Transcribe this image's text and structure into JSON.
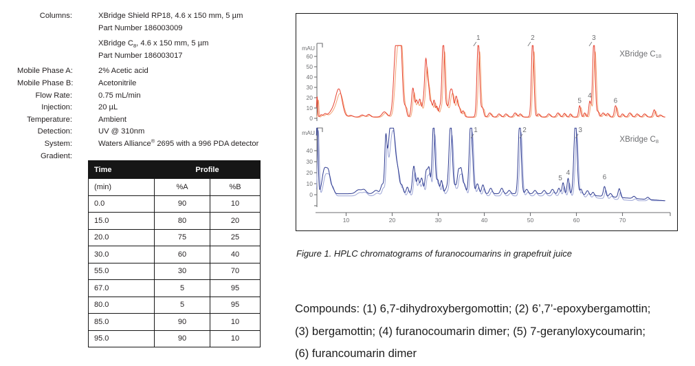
{
  "specs": {
    "items": [
      {
        "label": "Columns:",
        "lines": [
          "XBridge Shield RP18, 4.6 x 150 mm, 5 µm",
          "Part Number 186003009"
        ]
      },
      {
        "label": "",
        "lines": [
          "XBridge C~8~, 4.6 x 150 mm, 5 µm",
          "Part Number 186003017"
        ],
        "gap": true
      },
      {
        "label": "Mobile Phase A:",
        "lines": [
          "2% Acetic acid"
        ],
        "gap": true
      },
      {
        "label": "Mobile Phase B:",
        "lines": [
          "Acetonitrile"
        ]
      },
      {
        "label": "Flow Rate:",
        "lines": [
          "0.75 mL/min"
        ]
      },
      {
        "label": "Injection:",
        "lines": [
          "20 µL"
        ]
      },
      {
        "label": "Temperature:",
        "lines": [
          "Ambient"
        ]
      },
      {
        "label": "Detection:",
        "lines": [
          "UV @ 310nm"
        ]
      },
      {
        "label": "System:",
        "lines": [
          "Waters Alliance^®^ 2695 with a 996 PDA detector"
        ]
      },
      {
        "label": "Gradient:",
        "lines": []
      }
    ]
  },
  "gradient_table": {
    "header": {
      "time": "Time",
      "profile": "Profile",
      "time_unit": "(min)",
      "a": "%A",
      "b": "%B"
    },
    "rows": [
      [
        "0.0",
        "90",
        "10"
      ],
      [
        "15.0",
        "80",
        "20"
      ],
      [
        "20.0",
        "75",
        "25"
      ],
      [
        "30.0",
        "60",
        "40"
      ],
      [
        "55.0",
        "30",
        "70"
      ],
      [
        "67.0",
        "5",
        "95"
      ],
      [
        "80.0",
        "5",
        "95"
      ],
      [
        "85.0",
        "90",
        "10"
      ],
      [
        "95.0",
        "90",
        "10"
      ]
    ]
  },
  "figure_caption": "Figure 1.  HPLC chromatograms of furanocoumarins in grapefruit juice",
  "compounds": {
    "lines": [
      "Compounds: (1) 6,7-dihydroxybergomottin; (2) 6’,7’-epoxybergamottin;",
      "(3) bergamottin; (4) furanocoumarin dimer; (5) 7-geranyloxycoumarin;",
      "(6) furancoumarin dimer"
    ]
  },
  "chart_data": [
    {
      "type": "line",
      "id": "c18",
      "label": "XBridge C~18~",
      "ylabel": "mAU",
      "yticks": [
        0,
        10,
        20,
        30,
        40,
        50,
        60
      ],
      "xunit_min": true,
      "color": "#e6402f",
      "color2": "#f4a172",
      "baseline_mAU": 1.3,
      "clip_note": "tallest peaks clipped near 70 mAU",
      "peaks_t_h_w": [
        [
          3.7,
          20,
          0.12
        ],
        [
          4.6,
          2,
          0.25
        ],
        [
          5.4,
          2.5,
          0.3
        ],
        [
          7.6,
          9,
          1.0
        ],
        [
          8.5,
          21,
          0.65
        ],
        [
          11.0,
          1.5,
          0.4
        ],
        [
          13.5,
          2,
          0.4
        ],
        [
          14.9,
          2.5,
          0.35
        ],
        [
          18.3,
          5,
          0.5
        ],
        [
          20.9,
          75,
          0.5
        ],
        [
          21.8,
          70,
          0.4
        ],
        [
          22.9,
          9,
          0.25
        ],
        [
          24.5,
          28,
          0.3
        ],
        [
          25.3,
          15,
          0.25
        ],
        [
          26.0,
          17,
          0.28
        ],
        [
          26.7,
          10,
          0.22
        ],
        [
          27.3,
          55,
          0.28
        ],
        [
          27.9,
          26,
          0.25
        ],
        [
          28.5,
          13,
          0.22
        ],
        [
          29.1,
          16,
          0.22
        ],
        [
          29.7,
          10,
          0.2
        ],
        [
          30.3,
          8,
          0.2
        ],
        [
          31.1,
          75,
          0.3
        ],
        [
          31.9,
          8,
          0.2
        ],
        [
          32.6,
          23,
          0.3
        ],
        [
          33.1,
          18,
          0.25
        ],
        [
          33.9,
          20,
          0.3
        ],
        [
          34.6,
          8,
          0.25
        ],
        [
          35.4,
          6,
          0.25
        ],
        [
          38.7,
          75,
          0.28
        ],
        [
          39.6,
          9,
          0.25
        ],
        [
          41.2,
          4,
          0.3
        ],
        [
          43.2,
          3,
          0.3
        ],
        [
          44.7,
          3,
          0.3
        ],
        [
          46.7,
          4,
          0.3
        ],
        [
          47.8,
          3,
          0.25
        ],
        [
          50.5,
          75,
          0.26
        ],
        [
          51.8,
          3,
          0.25
        ],
        [
          54.0,
          3,
          0.3
        ],
        [
          56.0,
          4,
          0.3
        ],
        [
          57.4,
          3.5,
          0.25
        ],
        [
          58.7,
          3,
          0.2
        ],
        [
          60.7,
          11,
          0.22
        ],
        [
          61.8,
          4,
          0.2
        ],
        [
          62.9,
          15,
          0.22
        ],
        [
          63.8,
          75,
          0.28
        ],
        [
          64.7,
          5,
          0.2
        ],
        [
          65.8,
          4,
          0.3
        ],
        [
          66.8,
          3.5,
          0.25
        ],
        [
          68.5,
          11,
          0.25
        ],
        [
          70.0,
          3,
          0.25
        ],
        [
          71.6,
          4,
          0.3
        ],
        [
          73.2,
          3,
          0.3
        ],
        [
          74.8,
          3,
          0.3
        ],
        [
          76.9,
          7,
          0.25
        ],
        [
          78.2,
          2,
          0.3
        ]
      ],
      "peak_labels": [
        {
          "n": "1",
          "t": 38.7,
          "v": 76,
          "leader": true
        },
        {
          "n": "2",
          "t": 50.5,
          "v": 76,
          "leader": true
        },
        {
          "n": "3",
          "t": 63.8,
          "v": 76,
          "leader": true
        },
        {
          "n": "4",
          "t": 62.9,
          "v": 20
        },
        {
          "n": "5",
          "t": 60.7,
          "v": 15
        },
        {
          "n": "6",
          "t": 68.5,
          "v": 15
        }
      ]
    },
    {
      "type": "line",
      "id": "c8",
      "label": "XBridge C~8~",
      "ylabel": "mAU",
      "yticks": [
        0,
        10,
        20,
        30,
        40
      ],
      "xunit_min": true,
      "color": "#2d3a90",
      "color2": "#9aa3d5",
      "baseline_mAU": 0.9,
      "clip_note": "tallest peaks clipped near 60 mAU",
      "peaks_t_h_w": [
        [
          3.7,
          70,
          0.2
        ],
        [
          5.3,
          22,
          0.5
        ],
        [
          6.2,
          17,
          0.4
        ],
        [
          7.1,
          5,
          0.3
        ],
        [
          12.7,
          3.5,
          0.6
        ],
        [
          13.9,
          3.5,
          0.45
        ],
        [
          16.5,
          3,
          0.5
        ],
        [
          17.8,
          7,
          0.3
        ],
        [
          18.6,
          38,
          0.22
        ],
        [
          19.9,
          70,
          0.75
        ],
        [
          21.3,
          10,
          0.3
        ],
        [
          22.1,
          7,
          0.28
        ],
        [
          23.3,
          6,
          0.25
        ],
        [
          24.7,
          25,
          0.3
        ],
        [
          25.6,
          14,
          0.28
        ],
        [
          26.4,
          14,
          0.28
        ],
        [
          27.4,
          20,
          0.28
        ],
        [
          28.0,
          22,
          0.26
        ],
        [
          29.0,
          65,
          0.3
        ],
        [
          29.9,
          12,
          0.25
        ],
        [
          30.7,
          12,
          0.25
        ],
        [
          31.7,
          4,
          0.3
        ],
        [
          32.7,
          65,
          0.35
        ],
        [
          33.7,
          6,
          0.25
        ],
        [
          34.4,
          20,
          0.28
        ],
        [
          35.0,
          21,
          0.28
        ],
        [
          35.7,
          8,
          0.25
        ],
        [
          37.1,
          68,
          0.35
        ],
        [
          38.5,
          9,
          0.3
        ],
        [
          39.7,
          8,
          0.28
        ],
        [
          41.4,
          5,
          0.3
        ],
        [
          43.8,
          5,
          0.3
        ],
        [
          45.4,
          3,
          0.3
        ],
        [
          47.7,
          68,
          0.3
        ],
        [
          49.2,
          4,
          0.3
        ],
        [
          51.0,
          3,
          0.3
        ],
        [
          53.0,
          3,
          0.3
        ],
        [
          54.8,
          4,
          0.3
        ],
        [
          56.2,
          5,
          0.25
        ],
        [
          57.1,
          10,
          0.22
        ],
        [
          58.2,
          14,
          0.22
        ],
        [
          59.8,
          68,
          0.33
        ],
        [
          61.0,
          5,
          0.25
        ],
        [
          62.4,
          4,
          0.3
        ],
        [
          63.6,
          3,
          0.25
        ],
        [
          66.1,
          9,
          0.25
        ],
        [
          67.4,
          3,
          0.3
        ],
        [
          69.3,
          8,
          0.25
        ],
        [
          72.5,
          2,
          0.3
        ],
        [
          75.5,
          2,
          0.3
        ]
      ],
      "peak_labels": [
        {
          "n": "1",
          "t": 37.1,
          "v": 57,
          "dx": 7,
          "leader": true
        },
        {
          "n": "2",
          "t": 47.7,
          "v": 57,
          "dx": 7,
          "leader": true
        },
        {
          "n": "3",
          "t": 59.8,
          "v": 57,
          "dx": 7,
          "leader": true
        },
        {
          "n": "4",
          "t": 58.2,
          "v": 18
        },
        {
          "n": "5",
          "t": 57.1,
          "v": 13,
          "dx": -4
        },
        {
          "n": "6",
          "t": 66.1,
          "v": 14
        }
      ]
    }
  ],
  "x_axis": {
    "ticks": [
      10,
      20,
      30,
      40,
      50,
      60,
      70
    ]
  },
  "colors": {
    "text": "#231f20",
    "axis_gray": "#6d6e71",
    "c18_main": "#e6402f",
    "c18_secondary": "#f4a172",
    "c8_main": "#2d3a90",
    "c8_secondary": "#9aa3d5",
    "table_header_bg": "#161616"
  }
}
